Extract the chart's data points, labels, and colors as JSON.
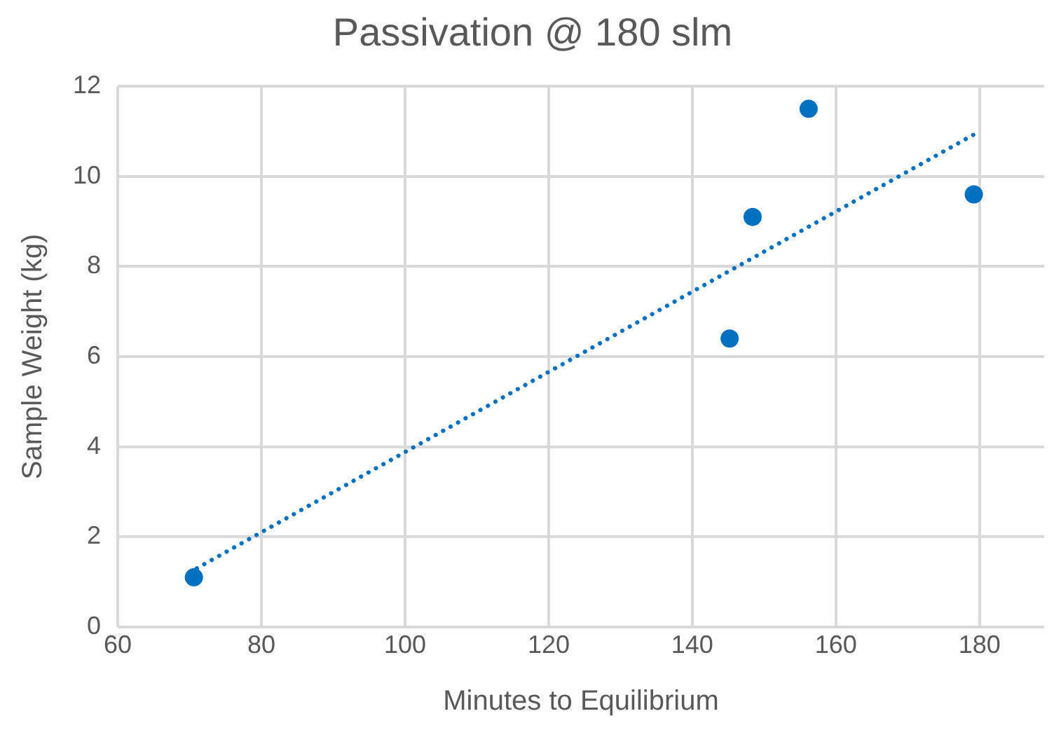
{
  "chart_data": {
    "type": "scatter",
    "title": "Passivation @ 180 slm",
    "xlabel": "Minutes to Equilibrium",
    "ylabel": "Sample Weight (kg)",
    "series": [
      {
        "color": "#0070c0",
        "x": [
          70.6,
          145.2,
          148.4,
          156.2,
          179.2
        ],
        "values": [
          1.1,
          6.4,
          9.1,
          11.5,
          9.6
        ],
        "marker": "circle"
      },
      {
        "type": "line",
        "color": "#0070c0",
        "x": [
          71,
          180
        ],
        "values": [
          1.3,
          11.0
        ],
        "line_style": "dotted",
        "marker": "none"
      }
    ],
    "xlim": [
      60,
      189
    ],
    "xticks": [
      60,
      80,
      100,
      120,
      140,
      160,
      180
    ],
    "ylim": [
      0,
      12
    ],
    "yticks": [
      0,
      2,
      4,
      6,
      8,
      10,
      12
    ],
    "grid": true,
    "legend": false
  }
}
